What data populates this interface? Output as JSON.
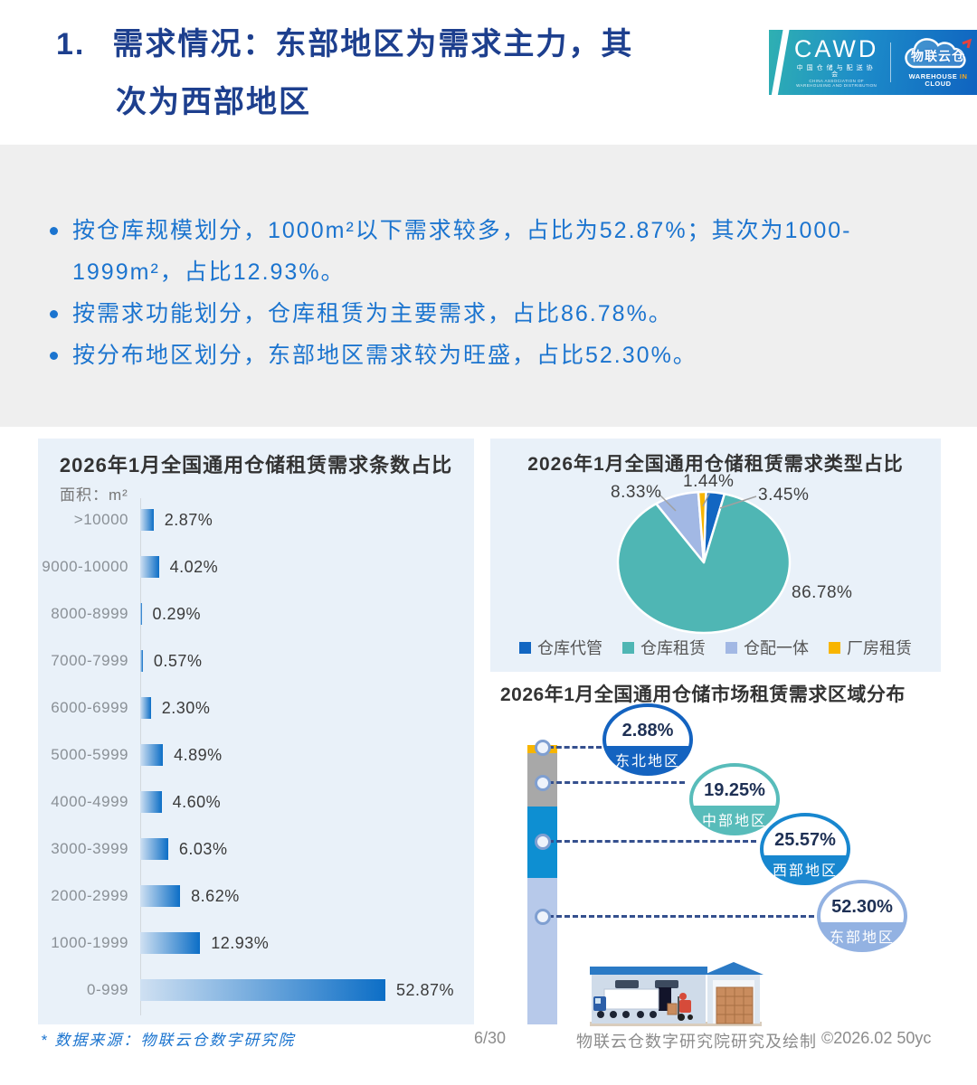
{
  "header": {
    "number": "1.",
    "title_line1": "需求情况：东部地区为需求主力，其",
    "title_line2": "次为西部地区",
    "logo": {
      "cawd": "CAWD",
      "cawd_cn": "中国仓储与配送协会",
      "cawd_en": "CHINA ASSOCIATION OF WAREHOUSING AND DISTRIBUTION",
      "wic": "物联云仓",
      "wic_w": "WAREHOUSE",
      "wic_in": "IN",
      "wic_cloud": "CLOUD"
    }
  },
  "summary": {
    "bullets": [
      "按仓库规模划分，1000m²以下需求较多，占比为52.87%；其次为1000-1999m²，占比12.93%。",
      "按需求功能划分，仓库租赁为主要需求，占比86.78%。",
      "按分布地区划分，东部地区需求较为旺盛，占比52.30%。"
    ]
  },
  "colors": {
    "accent_navy": "#1d3f8e",
    "bullet_blue": "#1b74cf",
    "panel_bg": "#e9f1f9",
    "bar_light": "#cfe0f2",
    "bar_dark": "#0c6ec6"
  },
  "chart_data": [
    {
      "type": "bar",
      "orientation": "horizontal",
      "title": "2026年1月全国通用仓储租赁需求条数占比",
      "axis_label": "面积：m²",
      "categories": [
        ">10000",
        "9000-10000",
        "8000-8999",
        "7000-7999",
        "6000-6999",
        "5000-5999",
        "4000-4999",
        "3000-3999",
        "2000-2999",
        "1000-1999",
        "0-999"
      ],
      "values": [
        2.87,
        4.02,
        0.29,
        0.57,
        2.3,
        4.89,
        4.6,
        6.03,
        8.62,
        12.93,
        52.87
      ],
      "value_labels": [
        "2.87%",
        "4.02%",
        "0.29%",
        "0.57%",
        "2.30%",
        "4.89%",
        "4.60%",
        "6.03%",
        "8.62%",
        "12.93%",
        "52.87%"
      ],
      "xlim": [
        0,
        60
      ],
      "grid": false
    },
    {
      "type": "pie",
      "title": "2026年1月全国通用仓储租赁需求类型占比",
      "labels": [
        "仓库代管",
        "仓库租赁",
        "仓配一体",
        "厂房租赁"
      ],
      "values": [
        3.45,
        86.78,
        8.33,
        1.44
      ],
      "value_labels": [
        "3.45%",
        "86.78%",
        "8.33%",
        "1.44%"
      ],
      "colors": [
        "#1266c2",
        "#4fb6b4",
        "#a2b8e4",
        "#f8b500"
      ],
      "legend_position": "bottom"
    },
    {
      "type": "bar",
      "subtype": "stacked-column-with-callout-badges",
      "title": "2026年1月全国通用仓储市场租赁需求区域分布",
      "labels": [
        "东北地区",
        "中部地区",
        "西部地区",
        "东部地区"
      ],
      "values": [
        2.88,
        19.25,
        25.57,
        52.3
      ],
      "value_labels": [
        "2.88%",
        "19.25%",
        "25.57%",
        "52.30%"
      ],
      "segment_colors": [
        "#f7b500",
        "#a8a8a8",
        "#0e8fd2",
        "#b7c9ea"
      ],
      "badge_colors": [
        "#1463c0",
        "#58bcba",
        "#1887cf",
        "#93b2e2"
      ]
    }
  ],
  "footer": {
    "source_note": "* 数据来源：物联云仓数字研究院",
    "page": "6/30",
    "credit": "物联云仓数字研究院研究及绘制",
    "copyright": "©2026.02 50yc"
  }
}
